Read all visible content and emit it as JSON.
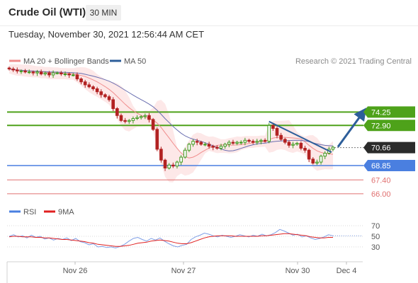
{
  "header": {
    "instrument": "Crude Oil (WTI)",
    "timeframe": "30 MIN",
    "datetime": "Tuesday, November 30, 2021 12:56:44 AM CET"
  },
  "legend": {
    "ma20_bb": "MA 20 + Bollinger Bands",
    "ma50": "MA 50",
    "credit": "Research © 2021 Trading Central"
  },
  "colors": {
    "green": "#4ea21a",
    "blue": "#4a7fe0",
    "red": "#e07070",
    "dark": "#2b2b2b",
    "navy": "#2d5e9a",
    "candle_up": "#3f9a1f",
    "candle_down": "#b22222",
    "bollinger": "#fde2e2"
  },
  "chart_data": {
    "type": "candlestick",
    "time_labels": [
      "Nov 26",
      "Nov 27",
      "Nov 30",
      "Dec 4"
    ],
    "price_levels": [
      {
        "label": "74.25",
        "value": 74.25,
        "style": "green"
      },
      {
        "label": "72.90",
        "value": 72.9,
        "style": "green"
      },
      {
        "label": "70.66",
        "value": 70.66,
        "style": "dark"
      },
      {
        "label": "68.85",
        "value": 68.85,
        "style": "blue"
      },
      {
        "label": "67.40",
        "value": 67.4,
        "style": "red"
      },
      {
        "label": "66.00",
        "value": 66.0,
        "style": "red"
      }
    ],
    "price_close_path": [
      78.6,
      78.5,
      78.4,
      78.4,
      78.3,
      78.3,
      78.2,
      78.3,
      78.1,
      78.2,
      78.0,
      78.2,
      78.2,
      78.1,
      78.1,
      78.0,
      78.0,
      77.6,
      77.3,
      77.0,
      76.8,
      76.6,
      76.3,
      76.0,
      75.8,
      75.5,
      74.6,
      73.9,
      73.4,
      73.3,
      73.4,
      73.6,
      73.7,
      73.8,
      73.9,
      73.5,
      72.5,
      70.5,
      69.4,
      68.6,
      68.9,
      68.8,
      69.2,
      69.7,
      70.4,
      71.0,
      71.3,
      71.2,
      71.0,
      71.0,
      70.8,
      70.7,
      70.6,
      70.8,
      71.0,
      71.2,
      71.1,
      71.2,
      71.2,
      71.4,
      71.3,
      71.2,
      71.3,
      71.4,
      71.3,
      72.9,
      72.6,
      71.9,
      71.5,
      71.2,
      70.9,
      71.0,
      71.1,
      70.6,
      70.4,
      69.5,
      69.1,
      69.2,
      69.8,
      70.1,
      70.5,
      70.7
    ],
    "projection": {
      "from": 70.66,
      "to": 74.25
    },
    "rsi": {
      "levels": [
        70,
        50,
        30
      ],
      "legend": [
        "RSI",
        "9MA"
      ],
      "rsi_path": [
        50,
        53,
        49,
        51,
        47,
        52,
        48,
        50,
        45,
        47,
        43,
        46,
        44,
        47,
        42,
        46,
        40,
        38,
        34,
        36,
        30,
        31,
        29,
        30,
        28,
        31,
        35,
        41,
        46,
        48,
        44,
        41,
        46,
        43,
        47,
        41,
        36,
        32,
        30,
        33,
        35,
        44,
        49,
        52,
        56,
        54,
        51,
        49,
        52,
        50,
        48,
        50,
        53,
        51,
        49,
        52,
        50,
        54,
        51,
        53,
        57,
        63,
        60,
        56,
        52,
        54,
        49,
        51,
        47,
        44,
        46,
        49,
        53,
        51
      ],
      "ma_path": [
        49,
        50,
        50,
        49,
        49,
        49,
        48,
        48,
        47,
        47,
        46,
        45,
        44,
        44,
        43,
        42,
        41,
        40,
        38,
        37,
        35,
        34,
        33,
        32,
        31,
        31,
        32,
        33,
        35,
        37,
        38,
        39,
        41,
        42,
        43,
        42,
        41,
        39,
        37,
        36,
        36,
        38,
        41,
        44,
        47,
        49,
        50,
        51,
        51,
        51,
        51,
        50,
        50,
        50,
        50,
        50,
        50,
        51,
        51,
        52,
        53,
        54,
        55,
        55,
        54,
        53,
        52,
        51,
        49,
        48,
        47,
        47,
        48,
        48
      ]
    }
  }
}
